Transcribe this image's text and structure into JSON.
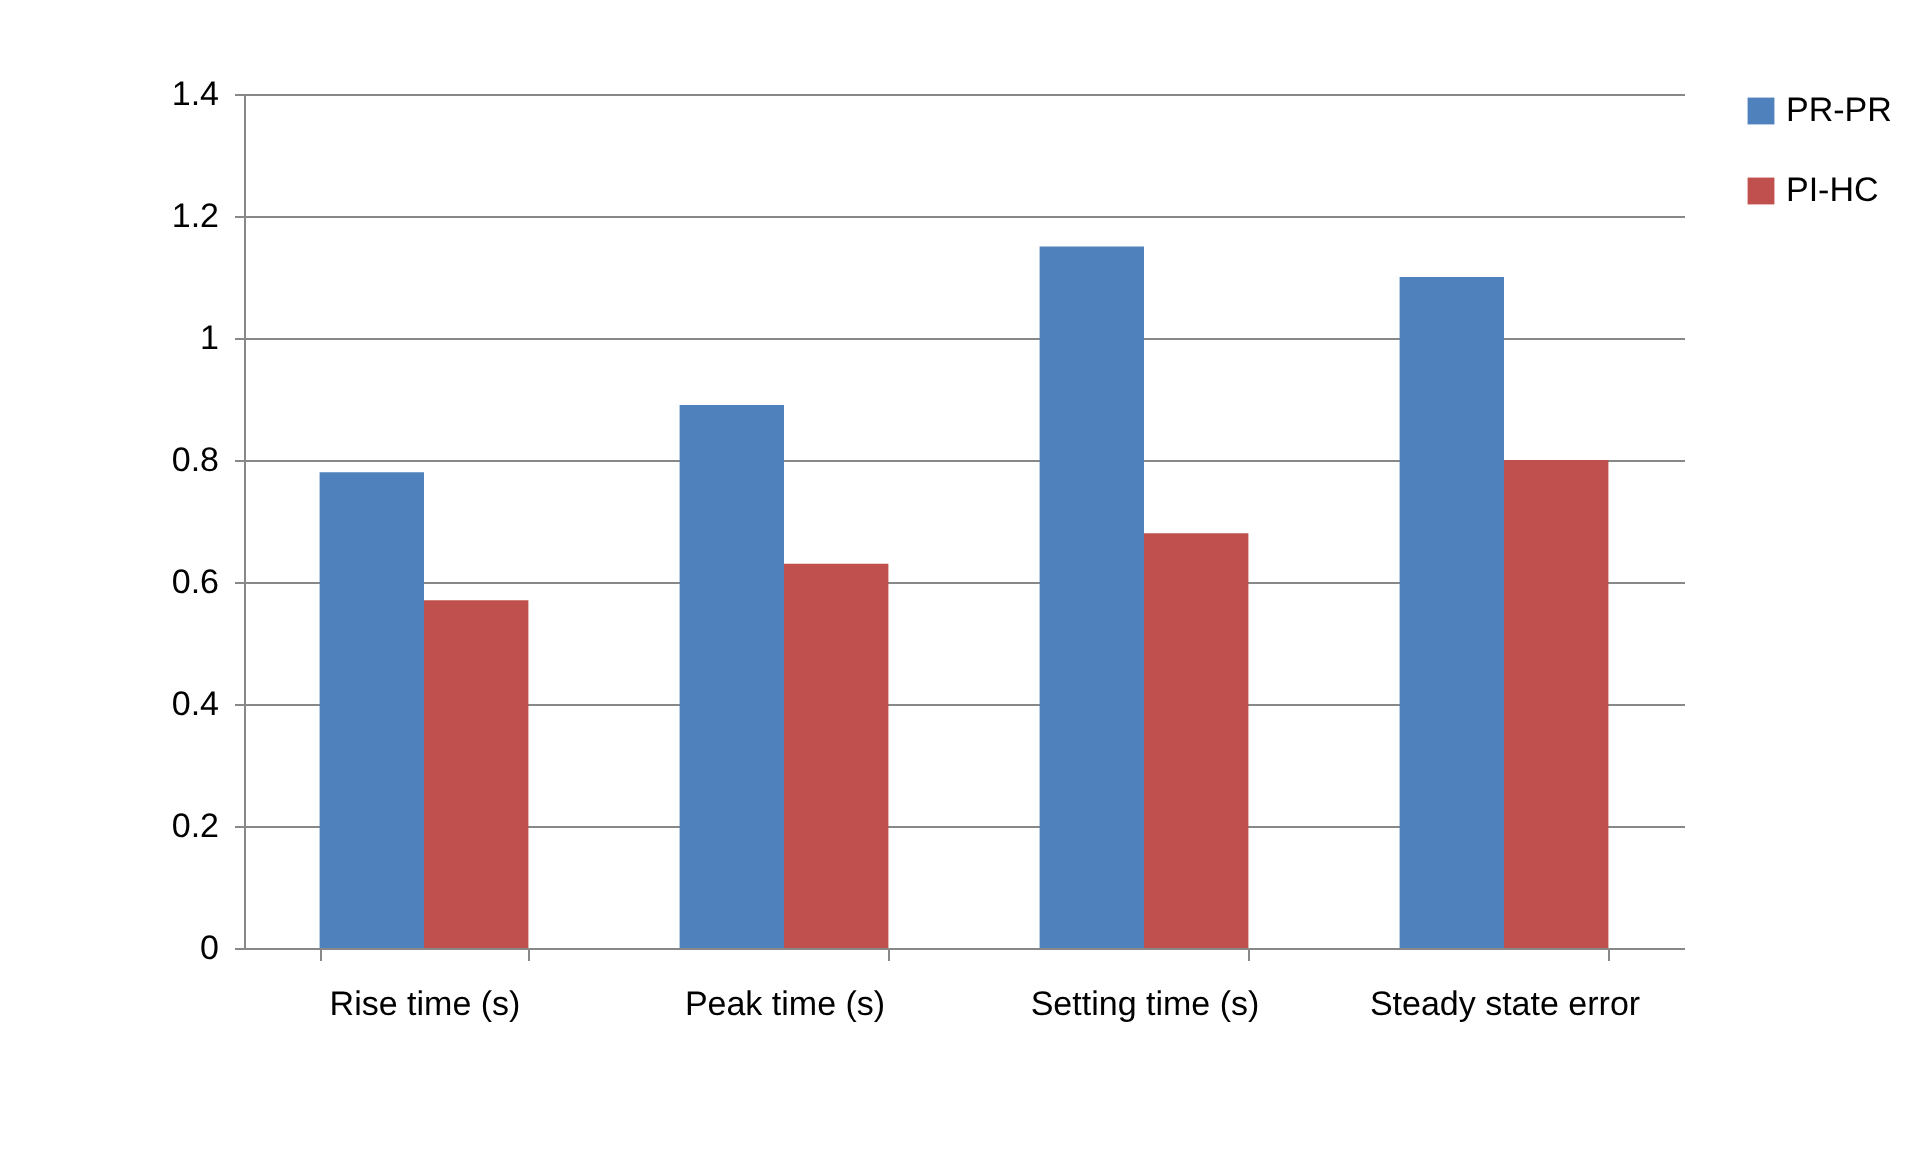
{
  "chart_data": {
    "type": "bar",
    "categories": [
      "Rise time  (s)",
      "Peak time  (s)",
      "Setting time  (s)",
      "Steady state error"
    ],
    "series": [
      {
        "name": "PR-PR",
        "color": "#4f81bd",
        "values": [
          0.78,
          0.89,
          1.15,
          1.1
        ]
      },
      {
        "name": "PI-HC",
        "color": "#c0504d",
        "values": [
          0.57,
          0.63,
          0.68,
          0.8
        ]
      }
    ],
    "ylim": [
      0,
      1.4
    ],
    "yticks": [
      0,
      0.2,
      0.4,
      0.6,
      0.8,
      1,
      1.2,
      1.4
    ],
    "grid": "y",
    "legend": "right"
  }
}
